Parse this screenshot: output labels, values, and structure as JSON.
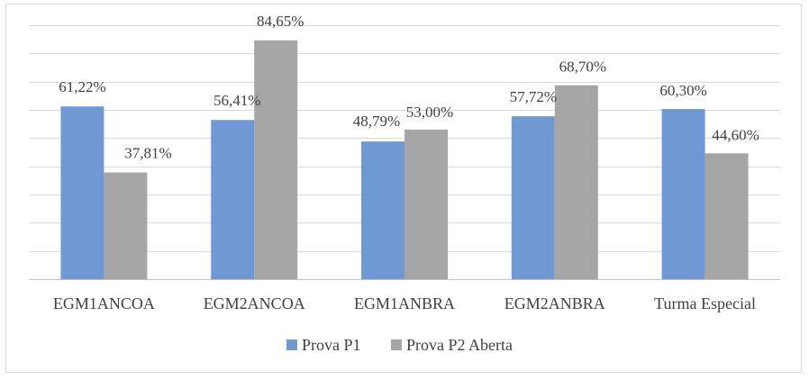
{
  "chart_data": {
    "type": "bar",
    "categories": [
      "EGM1ANCOA",
      "EGM2ANCOA",
      "EGM1ANBRA",
      "EGM2ANBRA",
      "Turma Especial"
    ],
    "series": [
      {
        "name": "Prova P1",
        "values": [
          61.22,
          56.41,
          48.79,
          57.72,
          60.3
        ],
        "labels": [
          "61,22%",
          "56,41%",
          "48,79%",
          "57,72%",
          "60,30%"
        ],
        "color": "#7099d3"
      },
      {
        "name": "Prova P2 Aberta",
        "values": [
          37.81,
          84.65,
          53.0,
          68.7,
          44.6
        ],
        "labels": [
          "37,81%",
          "84,65%",
          "53,00%",
          "68,70%",
          "44,60%"
        ],
        "color": "#a5a5a5"
      }
    ],
    "ylim": [
      0,
      90
    ],
    "grid": true,
    "legend": "bottom",
    "title": "",
    "xlabel": "",
    "ylabel": ""
  }
}
